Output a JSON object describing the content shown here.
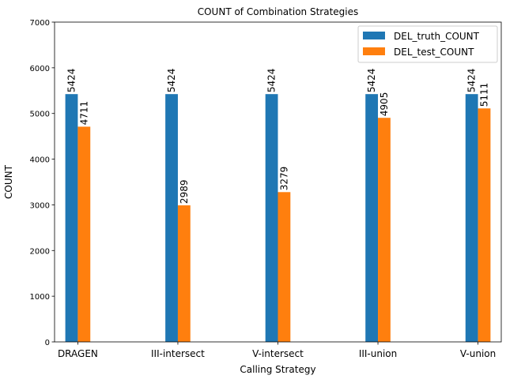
{
  "chart_data": {
    "type": "bar",
    "title": "COUNT of Combination Strategies",
    "xlabel": "Calling Strategy",
    "ylabel": "COUNT",
    "categories": [
      "DRAGEN",
      "III-intersect",
      "V-intersect",
      "III-union",
      "V-union"
    ],
    "series": [
      {
        "name": "DEL_truth_COUNT",
        "color": "#1f77b4",
        "values": [
          5424,
          5424,
          5424,
          5424,
          5424
        ]
      },
      {
        "name": "DEL_test_COUNT",
        "color": "#ff7f0e",
        "values": [
          4711,
          2989,
          3279,
          4905,
          5111
        ]
      }
    ],
    "ylim": [
      0,
      7000
    ],
    "yticks": [
      0,
      1000,
      2000,
      3000,
      4000,
      5000,
      6000,
      7000
    ],
    "grid": false,
    "legend": "top-right",
    "data_labels": true
  }
}
